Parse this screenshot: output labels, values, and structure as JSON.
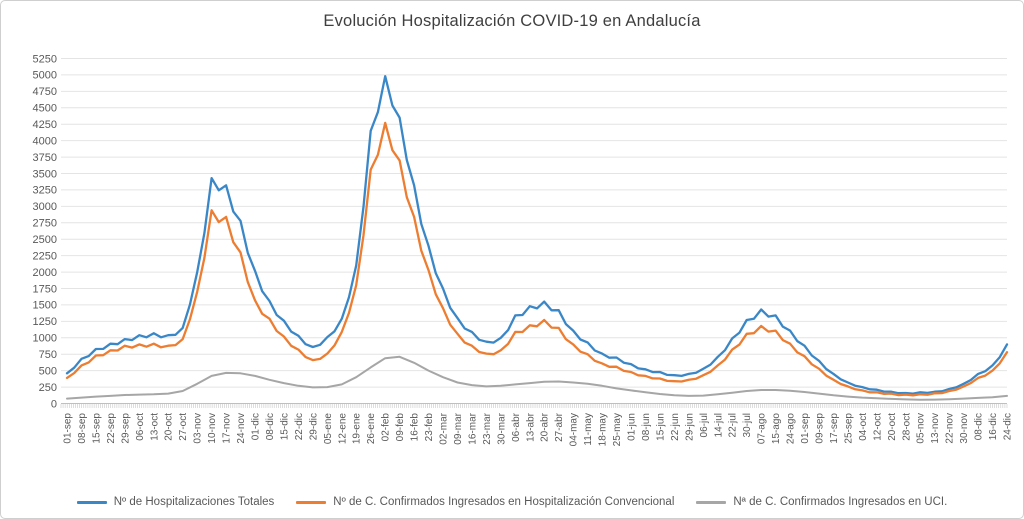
{
  "chart_data": {
    "type": "line",
    "title": "Evolución Hospitalización COVID-19 en Andalucía",
    "xlabel": "",
    "ylabel": "",
    "ylim": [
      0,
      5250
    ],
    "ytick_step": 250,
    "yticks": [
      0,
      250,
      500,
      750,
      1000,
      1250,
      1500,
      1750,
      2000,
      2250,
      2500,
      2750,
      3000,
      3250,
      3500,
      3750,
      4000,
      4250,
      4500,
      4750,
      5000,
      5250
    ],
    "grid": true,
    "legend_position": "bottom",
    "categories": [
      "01-sep",
      "08-sep",
      "15-sep",
      "22-sep",
      "29-sep",
      "06-oct",
      "13-oct",
      "20-oct",
      "27-oct",
      "03-nov",
      "10-nov",
      "17-nov",
      "24-nov",
      "01-dic",
      "08-dic",
      "15-dic",
      "22-dic",
      "29-dic",
      "05-ene",
      "12-ene",
      "19-ene",
      "26-ene",
      "02-feb",
      "09-feb",
      "16-feb",
      "23-feb",
      "02-mar",
      "09-mar",
      "16-mar",
      "23-mar",
      "30-mar",
      "06-abr",
      "13-abr",
      "20-abr",
      "27-abr",
      "04-may",
      "11-may",
      "18-may",
      "25-may",
      "01-jun",
      "08-jun",
      "15-jun",
      "22-jun",
      "29-jun",
      "06-jul",
      "14-jul",
      "22-jul",
      "30-jul",
      "07-ago",
      "15-ago",
      "24-ago",
      "01-sep",
      "09-sep",
      "17-sep",
      "25-sep",
      "04-oct",
      "12-oct",
      "20-oct",
      "28-oct",
      "05-nov",
      "13-nov",
      "22-nov",
      "30-nov",
      "08-dic",
      "16-dic",
      "24-dic"
    ],
    "series": [
      {
        "name": "Nº de Hospitalizaciones Totales",
        "color": "#3a87c8",
        "values": [
          460,
          680,
          830,
          910,
          980,
          1040,
          1070,
          1040,
          1150,
          2000,
          3430,
          3320,
          2780,
          2020,
          1560,
          1260,
          1030,
          860,
          1010,
          1290,
          2100,
          4150,
          4980,
          4350,
          3320,
          2400,
          1750,
          1300,
          1090,
          940,
          1000,
          1340,
          1480,
          1550,
          1420,
          1110,
          930,
          760,
          700,
          600,
          520,
          480,
          430,
          450,
          530,
          710,
          990,
          1270,
          1430,
          1340,
          1110,
          880,
          650,
          450,
          320,
          250,
          210,
          180,
          160,
          170,
          180,
          220,
          300,
          450,
          580,
          900
        ]
      },
      {
        "name": "Nº de C. Confirmados Ingresados en Hospitalización Convencional",
        "color": "#ed7d31",
        "values": [
          390,
          580,
          730,
          810,
          880,
          900,
          910,
          880,
          980,
          1700,
          2940,
          2840,
          2300,
          1570,
          1290,
          1020,
          820,
          660,
          760,
          1090,
          1800,
          3560,
          4270,
          3700,
          2840,
          2030,
          1450,
          1060,
          880,
          760,
          810,
          1090,
          1190,
          1270,
          1150,
          900,
          750,
          610,
          560,
          480,
          420,
          380,
          340,
          360,
          430,
          580,
          820,
          1060,
          1180,
          1110,
          910,
          720,
          530,
          360,
          260,
          200,
          170,
          150,
          135,
          140,
          155,
          190,
          260,
          390,
          500,
          780
        ]
      },
      {
        "name": "Nª de C. Confirmados Ingresados en UCI.",
        "color": "#a6a6a6",
        "values": [
          75,
          90,
          105,
          115,
          130,
          135,
          140,
          150,
          190,
          300,
          420,
          465,
          460,
          420,
          360,
          310,
          270,
          245,
          250,
          290,
          400,
          550,
          690,
          710,
          620,
          500,
          400,
          320,
          280,
          260,
          270,
          290,
          310,
          330,
          335,
          320,
          300,
          270,
          230,
          200,
          170,
          145,
          125,
          115,
          120,
          140,
          165,
          190,
          205,
          205,
          195,
          175,
          150,
          125,
          105,
          90,
          80,
          70,
          62,
          58,
          60,
          65,
          75,
          85,
          95,
          115
        ]
      }
    ]
  }
}
